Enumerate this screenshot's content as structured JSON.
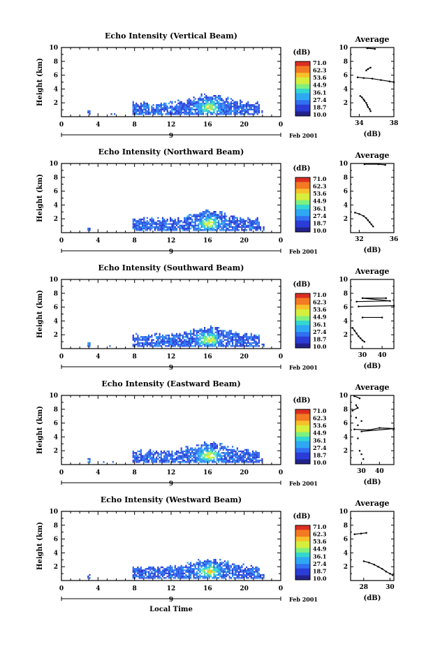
{
  "chart_data": [
    {
      "type": "heatmap",
      "title": "Echo Intensity (Vertical Beam)",
      "ylabel": "Height (km)",
      "x_ticks": [
        "0",
        "4",
        "8",
        "12",
        "16",
        "20",
        "0"
      ],
      "day_label": "9",
      "date_label": "Feb 2001",
      "xlim": [
        0,
        24
      ],
      "ylim": [
        0,
        10
      ],
      "y_ticks": [
        "2",
        "4",
        "6",
        "8",
        "10"
      ],
      "colorbar": {
        "unit": "(dB)",
        "ticks": [
          "71.0",
          "62.3",
          "53.6",
          "44.9",
          "36.1",
          "27.4",
          "18.7",
          "10.0"
        ]
      },
      "profile": {
        "title": "Average",
        "xlabel": "(dB)",
        "x_ticks": [
          "34",
          "38"
        ],
        "xlim": [
          33,
          38
        ],
        "y_ticks": [
          "2",
          "4",
          "6",
          "8",
          "10"
        ],
        "points": [
          [
            34.1,
            3.0
          ],
          [
            34.3,
            2.8
          ],
          [
            34.5,
            2.5
          ],
          [
            34.6,
            2.3
          ],
          [
            34.8,
            2.0
          ],
          [
            34.9,
            1.7
          ],
          [
            35.0,
            1.4
          ],
          [
            35.2,
            1.1
          ],
          [
            35.3,
            0.8
          ],
          [
            33.8,
            5.7
          ],
          [
            34.5,
            5.6
          ],
          [
            35.5,
            5.5
          ],
          [
            36.5,
            5.3
          ],
          [
            37.5,
            5.1
          ],
          [
            38.0,
            5.0
          ],
          [
            34.8,
            6.7
          ],
          [
            35.0,
            6.9
          ],
          [
            35.3,
            7.1
          ],
          [
            34.9,
            9.9
          ],
          [
            35.8,
            9.8
          ]
        ]
      }
    },
    {
      "type": "heatmap",
      "title": "Echo Intensity (Northward Beam)",
      "ylabel": "Height (km)",
      "x_ticks": [
        "0",
        "4",
        "8",
        "12",
        "16",
        "20",
        "0"
      ],
      "day_label": "9",
      "date_label": "Feb 2001",
      "xlim": [
        0,
        24
      ],
      "ylim": [
        0,
        10
      ],
      "y_ticks": [
        "2",
        "4",
        "6",
        "8",
        "10"
      ],
      "colorbar": {
        "unit": "(dB)",
        "ticks": [
          "71.0",
          "62.3",
          "53.6",
          "44.9",
          "36.1",
          "27.4",
          "18.7",
          "10.0"
        ]
      },
      "profile": {
        "title": "Average",
        "xlabel": "(dB)",
        "x_ticks": [
          "32",
          "36"
        ],
        "xlim": [
          31,
          36
        ],
        "y_ticks": [
          "2",
          "4",
          "6",
          "8",
          "10"
        ],
        "points": [
          [
            31.5,
            2.9
          ],
          [
            32.0,
            2.7
          ],
          [
            32.5,
            2.4
          ],
          [
            32.8,
            2.1
          ],
          [
            33.0,
            1.8
          ],
          [
            33.2,
            1.5
          ],
          [
            33.4,
            1.2
          ],
          [
            33.6,
            0.9
          ],
          [
            32.6,
            9.9
          ],
          [
            34.2,
            9.9
          ],
          [
            35.0,
            9.8
          ]
        ]
      }
    },
    {
      "type": "heatmap",
      "title": "Echo Intensity (Southward Beam)",
      "ylabel": "Height (km)",
      "x_ticks": [
        "0",
        "4",
        "8",
        "12",
        "16",
        "20",
        "0"
      ],
      "day_label": "9",
      "date_label": "Feb 2001",
      "xlim": [
        0,
        24
      ],
      "ylim": [
        0,
        10
      ],
      "y_ticks": [
        "2",
        "4",
        "6",
        "8",
        "10"
      ],
      "colorbar": {
        "unit": "(dB)",
        "ticks": [
          "71.0",
          "62.3",
          "53.6",
          "44.9",
          "36.1",
          "27.4",
          "18.7",
          "10.0"
        ]
      },
      "profile": {
        "title": "Average",
        "xlabel": "(dB)",
        "x_ticks": [
          "30",
          "40"
        ],
        "xlim": [
          24,
          46
        ],
        "y_ticks": [
          "2",
          "4",
          "6",
          "8",
          "10"
        ],
        "points": [
          [
            25.0,
            3.0
          ],
          [
            26.0,
            2.6
          ],
          [
            27.0,
            2.2
          ],
          [
            28.0,
            1.8
          ],
          [
            29.0,
            1.5
          ],
          [
            30.0,
            1.2
          ],
          [
            31.0,
            1.0
          ],
          [
            30.0,
            4.5
          ],
          [
            40.0,
            4.5
          ],
          [
            28.0,
            6.1
          ],
          [
            46.0,
            6.2
          ],
          [
            27.0,
            6.8
          ],
          [
            44.0,
            6.9
          ],
          [
            30.0,
            7.3
          ],
          [
            42.0,
            7.3
          ]
        ]
      }
    },
    {
      "type": "heatmap",
      "title": "Echo Intensity (Eastward Beam)",
      "ylabel": "Height (km)",
      "x_ticks": [
        "0",
        "4",
        "8",
        "12",
        "16",
        "20",
        "0"
      ],
      "day_label": "9",
      "date_label": "Feb 2001",
      "xlim": [
        0,
        24
      ],
      "ylim": [
        0,
        10
      ],
      "y_ticks": [
        "2",
        "4",
        "6",
        "8",
        "10"
      ],
      "colorbar": {
        "unit": "(dB)",
        "ticks": [
          "71.0",
          "62.3",
          "53.6",
          "44.9",
          "36.1",
          "27.4",
          "18.7",
          "10.0"
        ]
      },
      "profile": {
        "title": "Average",
        "xlabel": "(dB)",
        "x_ticks": [
          "30",
          "40"
        ],
        "xlim": [
          24,
          48
        ],
        "y_ticks": [
          "2",
          "4",
          "6",
          "8",
          "10"
        ],
        "points": [
          [
            26.0,
            9.9
          ],
          [
            29.0,
            9.6
          ],
          [
            27.0,
            8.6
          ],
          [
            28.0,
            8.2
          ],
          [
            25.0,
            7.8
          ],
          [
            27.0,
            6.8
          ],
          [
            30.0,
            6.3
          ],
          [
            28.0,
            5.7
          ],
          [
            26.0,
            5.1
          ],
          [
            34.0,
            5.0
          ],
          [
            40.0,
            5.3
          ],
          [
            48.0,
            5.2
          ],
          [
            30.0,
            4.8
          ],
          [
            28.0,
            3.8
          ],
          [
            29.0,
            2.0
          ],
          [
            30.0,
            1.5
          ],
          [
            31.0,
            0.8
          ]
        ]
      }
    },
    {
      "type": "heatmap",
      "title": "Echo Intensity (Westward Beam)",
      "ylabel": "Height (km)",
      "x_ticks": [
        "0",
        "4",
        "8",
        "12",
        "16",
        "20",
        "0"
      ],
      "day_label": "9",
      "date_label": "Feb 2001",
      "xlim": [
        0,
        24
      ],
      "ylim": [
        0,
        10
      ],
      "y_ticks": [
        "2",
        "4",
        "6",
        "8",
        "10"
      ],
      "xlabel": "Local Time",
      "colorbar": {
        "unit": "(dB)",
        "ticks": [
          "71.0",
          "62.3",
          "53.6",
          "44.9",
          "36.1",
          "27.4",
          "18.7",
          "10.0"
        ]
      },
      "profile": {
        "title": "Average",
        "xlabel": "(dB)",
        "x_ticks": [
          "28",
          "30"
        ],
        "xlim": [
          27,
          30.3
        ],
        "y_ticks": [
          "2",
          "4",
          "6",
          "8",
          "10"
        ],
        "points": [
          [
            27.3,
            6.7
          ],
          [
            27.8,
            6.8
          ],
          [
            28.2,
            6.9
          ],
          [
            28.0,
            2.8
          ],
          [
            28.4,
            2.6
          ],
          [
            28.8,
            2.3
          ],
          [
            29.1,
            2.0
          ],
          [
            29.4,
            1.7
          ],
          [
            29.7,
            1.3
          ],
          [
            30.0,
            1.0
          ],
          [
            30.2,
            0.8
          ]
        ]
      }
    }
  ]
}
